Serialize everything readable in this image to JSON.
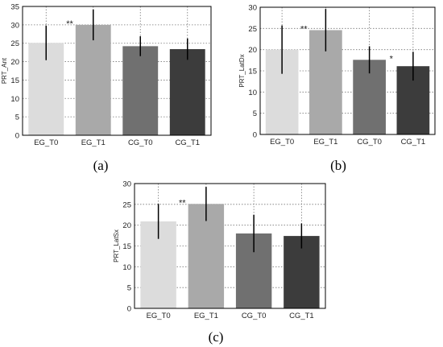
{
  "chart_data": [
    {
      "type": "bar",
      "panel_label": "(a)",
      "ylabel": "PRT_Ant",
      "categories": [
        "EG_T0",
        "EG_T1",
        "CG_T0",
        "CG_T1"
      ],
      "values": [
        25.1,
        30.0,
        24.2,
        23.4
      ],
      "errors": [
        4.7,
        4.2,
        2.7,
        2.9
      ],
      "ylim": [
        0,
        35
      ],
      "yticks": [
        "0",
        "5",
        "10",
        "15",
        "20",
        "25",
        "30",
        "35"
      ],
      "grid": true,
      "annotations": [
        {
          "text": "**",
          "between": [
            0,
            1
          ]
        }
      ]
    },
    {
      "type": "bar",
      "panel_label": "(b)",
      "ylabel": "PRT_LatDx",
      "categories": [
        "EG_T0",
        "EG_T1",
        "CG_T0",
        "CG_T1"
      ],
      "values": [
        20.0,
        24.6,
        17.6,
        16.1
      ],
      "errors": [
        5.7,
        5.0,
        3.2,
        3.4
      ],
      "ylim": [
        0,
        30
      ],
      "yticks": [
        "0",
        "5",
        "10",
        "15",
        "20",
        "25",
        "30"
      ],
      "grid": true,
      "annotations": [
        {
          "text": "**",
          "between": [
            0,
            1
          ]
        },
        {
          "text": "*",
          "between": [
            2,
            3
          ]
        }
      ]
    },
    {
      "type": "bar",
      "panel_label": "(c)",
      "ylabel": "PRT_LatSx",
      "categories": [
        "EG_T0",
        "EG_T1",
        "CG_T0",
        "CG_T1"
      ],
      "values": [
        20.9,
        25.1,
        18.0,
        17.4
      ],
      "errors": [
        4.2,
        4.1,
        4.5,
        3.0
      ],
      "ylim": [
        0,
        30
      ],
      "yticks": [
        "0",
        "5",
        "10",
        "15",
        "20",
        "25",
        "30"
      ],
      "grid": true,
      "annotations": [
        {
          "text": "**",
          "between": [
            0,
            1
          ]
        }
      ]
    }
  ],
  "bar_colors": [
    "#dcdcdc",
    "#a9a9a9",
    "#707070",
    "#3c3c3c"
  ]
}
